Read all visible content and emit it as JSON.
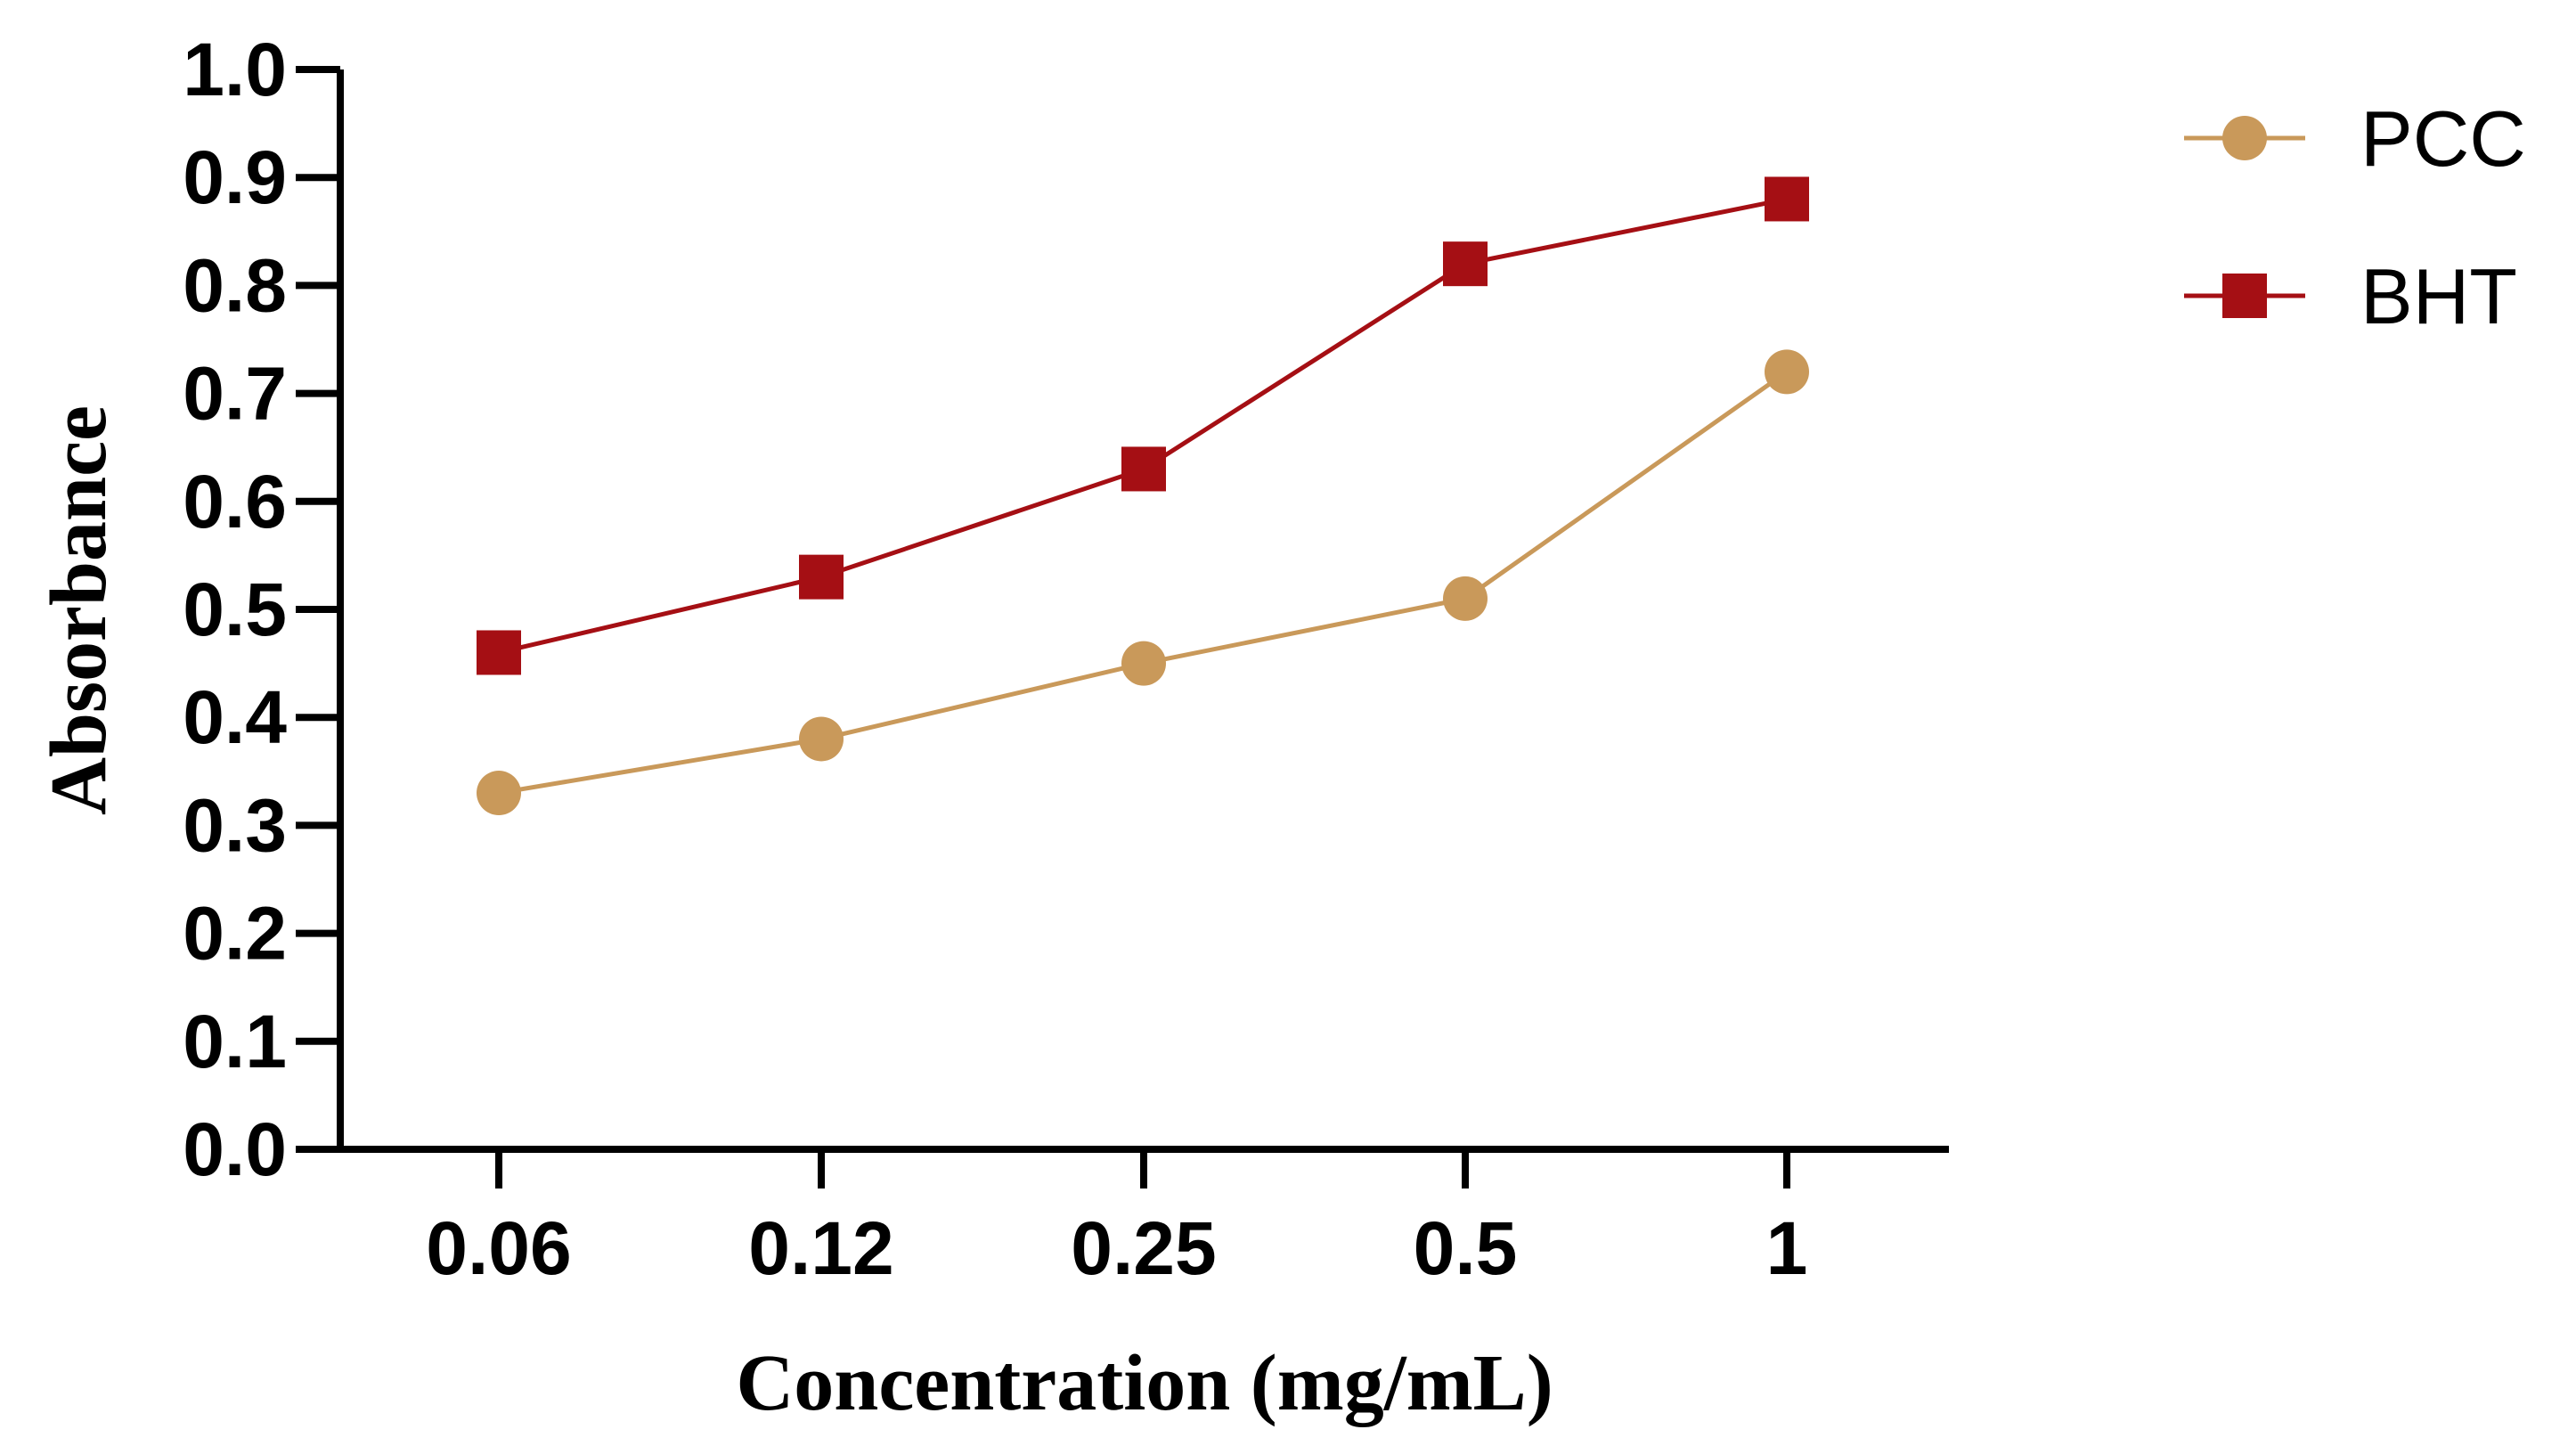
{
  "chart_data": {
    "type": "line",
    "title": "",
    "xlabel": "Concentration (mg/mL)",
    "ylabel": "Absorbance",
    "categories": [
      "0.06",
      "0.12",
      "0.25",
      "0.5",
      "1"
    ],
    "ylim": [
      0.0,
      1.0
    ],
    "yticks": [
      "0.0",
      "0.1",
      "0.2",
      "0.3",
      "0.4",
      "0.5",
      "0.6",
      "0.7",
      "0.8",
      "0.9",
      "1.0"
    ],
    "grid": false,
    "legend_position": "top-right",
    "series": [
      {
        "name": "PCC",
        "marker": "circle",
        "color": "#C9995A",
        "values": [
          0.33,
          0.38,
          0.45,
          0.51,
          0.72
        ]
      },
      {
        "name": "BHT",
        "marker": "square",
        "color": "#A50F14",
        "values": [
          0.46,
          0.53,
          0.63,
          0.82,
          0.88
        ]
      }
    ]
  }
}
